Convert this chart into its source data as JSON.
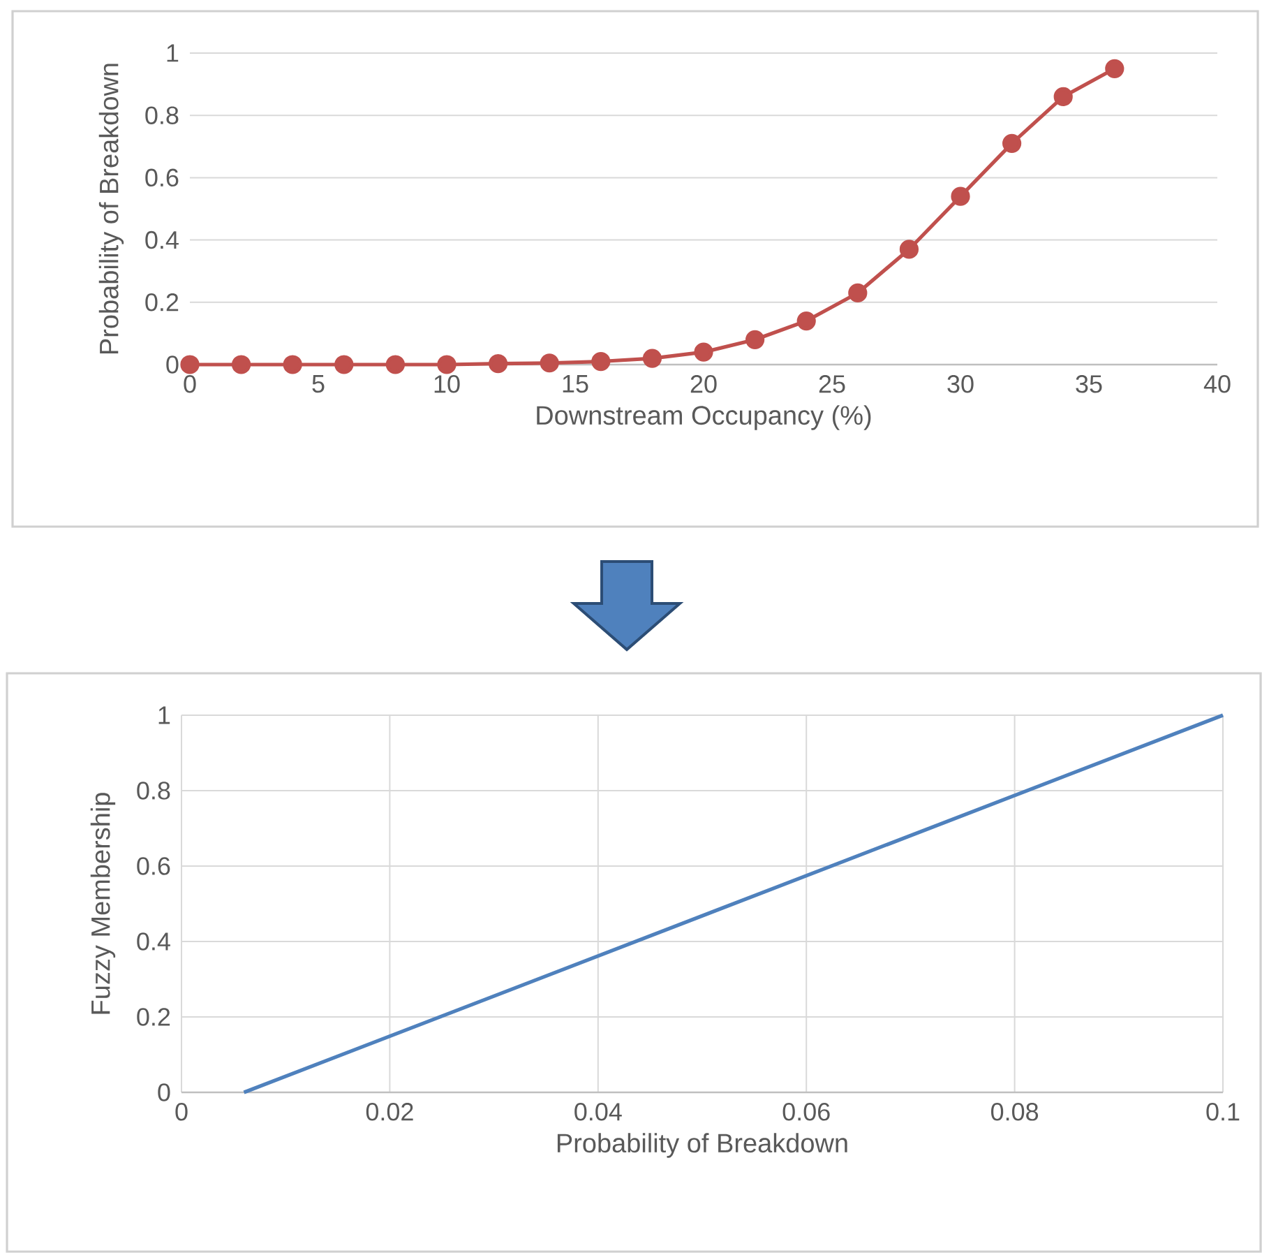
{
  "chart_data": [
    {
      "type": "line",
      "xlabel": "Downstream Occupancy (%)",
      "ylabel": "Probability of Breakdown",
      "x": [
        0,
        2,
        4,
        6,
        8,
        10,
        12,
        14,
        16,
        18,
        20,
        22,
        24,
        26,
        28,
        30,
        32,
        34,
        36
      ],
      "series": [
        {
          "color": "#c0504d",
          "values": [
            0,
            0,
            0,
            0,
            0,
            0,
            0.003,
            0.005,
            0.01,
            0.02,
            0.04,
            0.08,
            0.14,
            0.23,
            0.37,
            0.54,
            0.71,
            0.86,
            0.95
          ]
        }
      ],
      "xlim": [
        0,
        40
      ],
      "ylim": [
        0,
        1
      ],
      "xticks": [
        0,
        5,
        10,
        15,
        20,
        25,
        30,
        35,
        40
      ],
      "yticks": [
        0,
        0.2,
        0.4,
        0.6,
        0.8,
        1
      ],
      "grid": "y",
      "marker": "circle",
      "line_style": "solid"
    },
    {
      "type": "line",
      "xlabel": "Probability of Breakdown",
      "ylabel": "Fuzzy Membership",
      "x": [
        0.006,
        0.1
      ],
      "series": [
        {
          "color": "#4f81bd",
          "values": [
            0,
            1
          ]
        }
      ],
      "xlim": [
        0,
        0.1
      ],
      "ylim": [
        0,
        1
      ],
      "xticks": [
        0,
        0.02,
        0.04,
        0.06,
        0.08,
        0.1
      ],
      "yticks": [
        0,
        0.2,
        0.4,
        0.6,
        0.8,
        1
      ],
      "grid": true,
      "marker": "none",
      "line_style": "solid"
    }
  ]
}
